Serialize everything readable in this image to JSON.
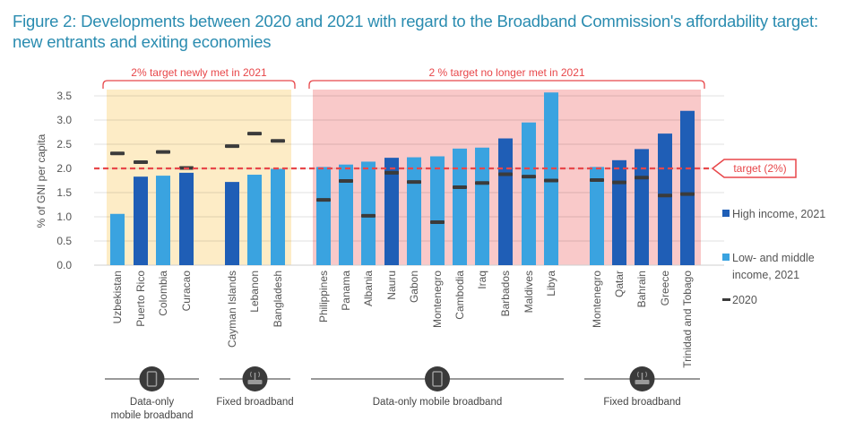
{
  "title": "Figure 2: Developments between 2020 and 2021 with regard to the Broadband Commission's affordability target: new entrants and exiting economies",
  "colors": {
    "high_income": "#1f5eb6",
    "low_middle_income": "#3aa3e0",
    "marker_2020": "#3b3b3b",
    "target_line": "#e8474a",
    "region_met": "#fdecc6",
    "region_not_met": "#f9c9c9",
    "title": "#2a8cb0"
  },
  "chart_data": {
    "type": "bar",
    "title": "Figure 2: Developments between 2020 and 2021 with regard to the Broadband Commission's affordability target: new entrants and exiting economies",
    "xlabel": "",
    "ylabel": "% of GNI per capita",
    "ylim": [
      0,
      3.5
    ],
    "yticks": [
      "0.0",
      "0.5",
      "1.0",
      "1.5",
      "2.0",
      "2.5",
      "3.0",
      "3.5"
    ],
    "grid": true,
    "target": {
      "value": 2.0,
      "label": "target (2%)"
    },
    "legend": {
      "placement": "right",
      "entries": [
        {
          "key": "high",
          "label": "High income, 2021"
        },
        {
          "key": "low",
          "label": "Low- and middle income, 2021",
          "lines": [
            "Low- and middle",
            "income, 2021"
          ]
        },
        {
          "key": "m2020",
          "label": "2020"
        }
      ]
    },
    "regions": [
      {
        "label": "2% target newly met in 2021",
        "from": 0,
        "to": 6
      },
      {
        "label": "2 % target no longer met in 2021",
        "from": 7,
        "to": 22
      }
    ],
    "groups": [
      {
        "label_lines": [
          "Data-only",
          "mobile broadband"
        ],
        "icon": "mobile-phone-icon",
        "from": 0,
        "to": 3
      },
      {
        "label_lines": [
          "Fixed broadband"
        ],
        "icon": "router-icon",
        "from": 4,
        "to": 6
      },
      {
        "label_lines": [
          "Data-only mobile broadband"
        ],
        "icon": "mobile-phone-icon",
        "from": 7,
        "to": 17
      },
      {
        "label_lines": [
          "Fixed broadband"
        ],
        "icon": "router-icon",
        "from": 18,
        "to": 22
      }
    ],
    "categories": [
      "Uzbekistan",
      "Puerto Rico",
      "Colombia",
      "Curacao",
      "Cayman Islands",
      "Lebanon",
      "Bangladesh",
      "Philippines",
      "Panama",
      "Albania",
      "Nauru",
      "Gabon",
      "Montenegro",
      "Cambodia",
      "Iraq",
      "Barbados",
      "Maldives",
      "Libya",
      "Montenegro",
      "Qatar",
      "Bahrain",
      "Greece",
      "Trinidad and Tobago"
    ],
    "series": [
      {
        "name": "2021",
        "values": [
          1.06,
          1.83,
          1.85,
          1.91,
          1.72,
          1.87,
          1.99,
          2.03,
          2.08,
          2.14,
          2.22,
          2.23,
          2.25,
          2.41,
          2.43,
          2.62,
          2.95,
          3.57,
          2.03,
          2.17,
          2.4,
          2.72,
          3.19
        ]
      },
      {
        "name": "2020",
        "values": [
          2.31,
          2.13,
          2.34,
          2.01,
          2.46,
          2.72,
          2.57,
          1.35,
          1.74,
          1.02,
          1.91,
          1.72,
          0.89,
          1.61,
          1.7,
          1.88,
          1.83,
          1.75,
          1.76,
          1.71,
          1.81,
          1.44,
          1.47
        ]
      }
    ],
    "income_group": [
      "low",
      "high",
      "low",
      "high",
      "high",
      "low",
      "low",
      "low",
      "low",
      "low",
      "high",
      "low",
      "low",
      "low",
      "low",
      "high",
      "low",
      "low",
      "low",
      "high",
      "high",
      "high",
      "high"
    ]
  }
}
